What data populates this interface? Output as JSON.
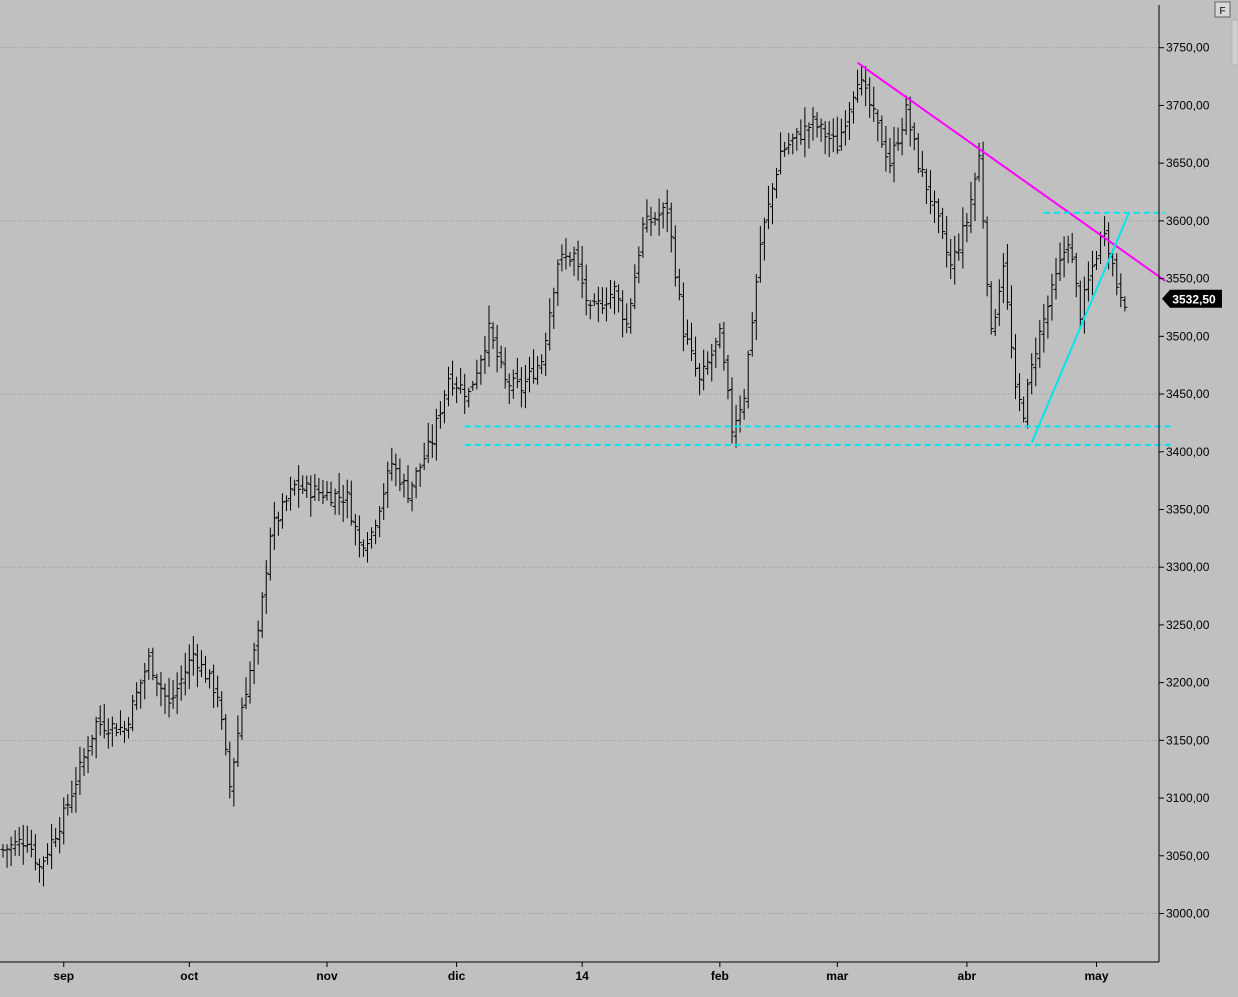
{
  "corner_button": {
    "label": "F"
  },
  "chart_data": {
    "type": "ohlc",
    "title": "",
    "xlabel": "",
    "ylabel": "",
    "ylim": [
      2958,
      3787
    ],
    "grid": true,
    "colors": {
      "background": "#c0c0c0",
      "bars": "#000000",
      "downtrend": "#ff00ff",
      "support": "#00e5ee",
      "tag_bg": "#000000",
      "tag_text": "#ffffff"
    },
    "y_ticks": [
      {
        "value": 3750,
        "label": "3750,00"
      },
      {
        "value": 3700,
        "label": "3700,00"
      },
      {
        "value": 3650,
        "label": "3650,00"
      },
      {
        "value": 3600,
        "label": "3600,00"
      },
      {
        "value": 3550,
        "label": "3550,00"
      },
      {
        "value": 3500,
        "label": "3500,00"
      },
      {
        "value": 3450,
        "label": "3450,00"
      },
      {
        "value": 3400,
        "label": "3400,00"
      },
      {
        "value": 3350,
        "label": "3350,00"
      },
      {
        "value": 3300,
        "label": "3300,00"
      },
      {
        "value": 3250,
        "label": "3250,00"
      },
      {
        "value": 3200,
        "label": "3200,00"
      },
      {
        "value": 3150,
        "label": "3150,00"
      },
      {
        "value": 3100,
        "label": "3100,00"
      },
      {
        "value": 3050,
        "label": "3050,00"
      },
      {
        "value": 3000,
        "label": "3000,00"
      }
    ],
    "grid_values": [
      3750,
      3600,
      3450,
      3300,
      3150,
      3000
    ],
    "x_ticks": [
      {
        "label": "sep",
        "index": 15
      },
      {
        "label": "oct",
        "index": 46
      },
      {
        "label": "nov",
        "index": 80
      },
      {
        "label": "dic",
        "index": 112
      },
      {
        "label": "14",
        "index": 143
      },
      {
        "label": "feb",
        "index": 177
      },
      {
        "label": "mar",
        "index": 206
      },
      {
        "label": "abr",
        "index": 238
      },
      {
        "label": "may",
        "index": 270
      }
    ],
    "last_price": {
      "value": 3532.5,
      "label": "3532,50"
    },
    "anchor_points": [
      [
        0,
        3055
      ],
      [
        6,
        3065
      ],
      [
        9,
        3040
      ],
      [
        15,
        3085
      ],
      [
        23,
        3165
      ],
      [
        30,
        3160
      ],
      [
        36,
        3220
      ],
      [
        41,
        3180
      ],
      [
        47,
        3225
      ],
      [
        53,
        3190
      ],
      [
        56,
        3110
      ],
      [
        59,
        3180
      ],
      [
        63,
        3240
      ],
      [
        66,
        3330
      ],
      [
        72,
        3370
      ],
      [
        78,
        3365
      ],
      [
        85,
        3360
      ],
      [
        88,
        3320
      ],
      [
        91,
        3330
      ],
      [
        96,
        3390
      ],
      [
        100,
        3365
      ],
      [
        106,
        3410
      ],
      [
        110,
        3465
      ],
      [
        115,
        3450
      ],
      [
        120,
        3505
      ],
      [
        124,
        3460
      ],
      [
        128,
        3455
      ],
      [
        133,
        3480
      ],
      [
        137,
        3565
      ],
      [
        141,
        3570
      ],
      [
        145,
        3520
      ],
      [
        151,
        3540
      ],
      [
        154,
        3510
      ],
      [
        158,
        3595
      ],
      [
        164,
        3610
      ],
      [
        168,
        3505
      ],
      [
        172,
        3460
      ],
      [
        177,
        3500
      ],
      [
        180,
        3420
      ],
      [
        183,
        3450
      ],
      [
        187,
        3580
      ],
      [
        192,
        3660
      ],
      [
        200,
        3685
      ],
      [
        206,
        3665
      ],
      [
        211,
        3725
      ],
      [
        214,
        3700
      ],
      [
        219,
        3650
      ],
      [
        223,
        3695
      ],
      [
        226,
        3650
      ],
      [
        230,
        3610
      ],
      [
        234,
        3560
      ],
      [
        238,
        3600
      ],
      [
        241,
        3655
      ],
      [
        244,
        3500
      ],
      [
        247,
        3565
      ],
      [
        250,
        3450
      ],
      [
        252,
        3435
      ],
      [
        255,
        3490
      ],
      [
        260,
        3550
      ],
      [
        263,
        3585
      ],
      [
        266,
        3520
      ],
      [
        269,
        3560
      ],
      [
        272,
        3595
      ],
      [
        275,
        3545
      ],
      [
        277,
        3532
      ]
    ],
    "annotations": [
      {
        "type": "trendline",
        "color": "#ff00ff",
        "from": [
          211,
          3737
        ],
        "to": [
          287,
          3548
        ]
      },
      {
        "type": "trendline",
        "color": "#00e5ee",
        "from": [
          254,
          3408
        ],
        "to": [
          278,
          3607
        ]
      },
      {
        "type": "hline-dashed",
        "color": "#00e5ee",
        "y": 3422,
        "from": 114,
        "to": 289
      },
      {
        "type": "hline-dashed",
        "color": "#00e5ee",
        "y": 3406,
        "from": 114,
        "to": 289
      },
      {
        "type": "hline-dashed",
        "color": "#00e5ee",
        "y": 3607,
        "from": 257,
        "to": 287
      }
    ]
  }
}
